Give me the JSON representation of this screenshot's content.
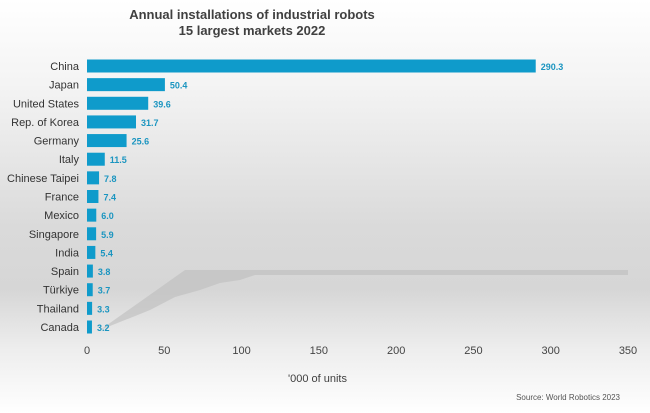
{
  "chart_data": {
    "type": "bar",
    "orientation": "horizontal",
    "title": "Annual installations of industrial robots",
    "subtitle": "15 largest markets 2022",
    "categories": [
      "China",
      "Japan",
      "United States",
      "Rep. of Korea",
      "Germany",
      "Italy",
      "Chinese Taipei",
      "France",
      "Mexico",
      "Singapore",
      "India",
      "Spain",
      "Türkiye",
      "Thailand",
      "Canada"
    ],
    "values": [
      290.3,
      50.4,
      39.6,
      31.7,
      25.6,
      11.5,
      7.8,
      7.4,
      6.0,
      5.9,
      5.4,
      3.8,
      3.7,
      3.3,
      3.2
    ],
    "value_labels": [
      "290.3",
      "50.4",
      "39.6",
      "31.7",
      "25.6",
      "11.5",
      "7.8",
      "7.4",
      "6.0",
      "5.9",
      "5.4",
      "3.8",
      "3.7",
      "3.3",
      "3.2"
    ],
    "xlabel": "'000 of units",
    "ylabel": "",
    "xlim": [
      0,
      350
    ],
    "xticks": [
      "0",
      "50",
      "100",
      "150",
      "200",
      "250",
      "300",
      "350"
    ],
    "grid": false,
    "legend": "none",
    "bar_color": "#0f9bcb",
    "label_color": "#1b95c0"
  },
  "source": "Source: World Robotics 2023"
}
